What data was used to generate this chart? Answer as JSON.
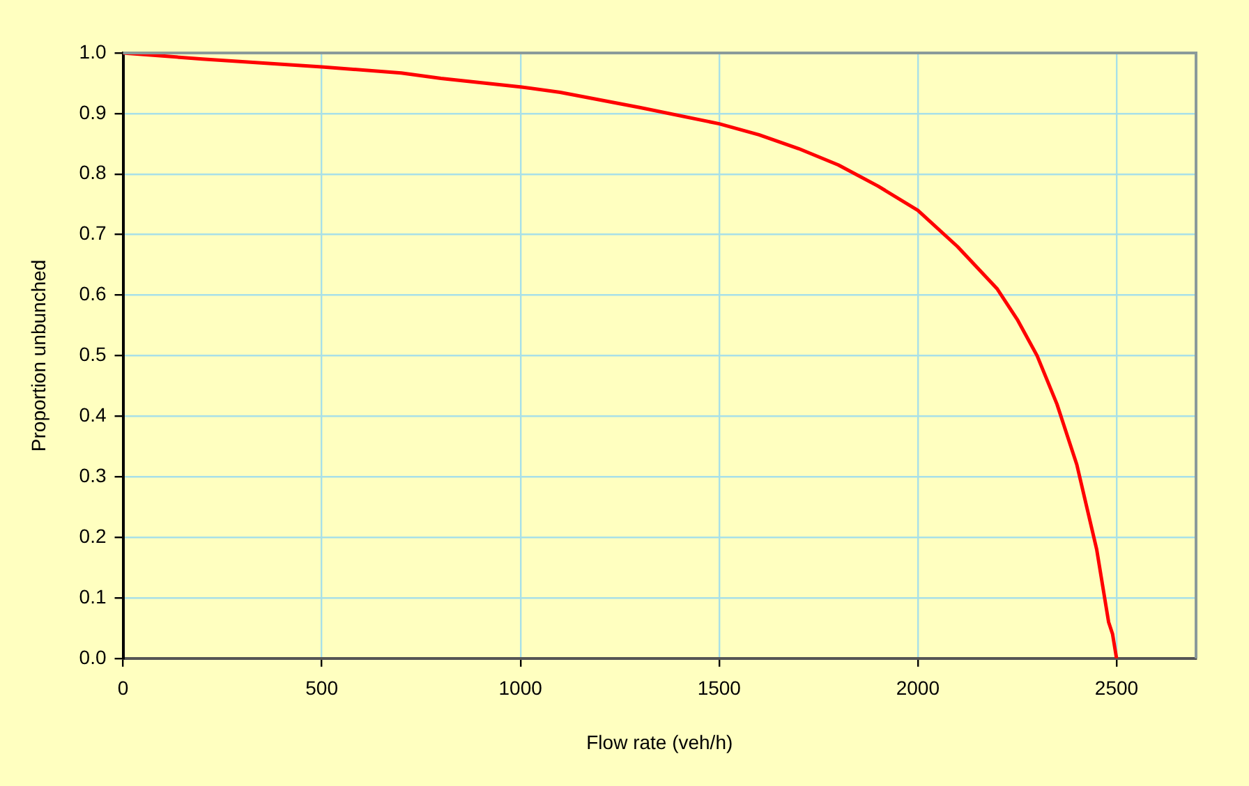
{
  "chart_data": {
    "type": "line",
    "xlabel": "Flow rate (veh/h)",
    "ylabel": "Proportion unbunched",
    "x": [
      0,
      200,
      500,
      700,
      800,
      1000,
      1100,
      1300,
      1500,
      1600,
      1700,
      1800,
      1900,
      2000,
      2100,
      2200,
      2250,
      2300,
      2350,
      2400,
      2450,
      2480,
      2490,
      2500
    ],
    "series": [
      {
        "color": "#ff0000",
        "values": [
          1.0,
          0.99,
          0.977,
          0.967,
          0.958,
          0.944,
          0.935,
          0.91,
          0.883,
          0.865,
          0.842,
          0.815,
          0.78,
          0.74,
          0.68,
          0.61,
          0.56,
          0.5,
          0.42,
          0.32,
          0.18,
          0.06,
          0.04,
          0.0
        ]
      }
    ],
    "xlim": [
      0,
      2700
    ],
    "xticks": [
      0,
      500,
      1000,
      1500,
      2000,
      2500
    ],
    "ylim": [
      0,
      1
    ],
    "yticks": [
      {
        "value": 0,
        "label": "0.0"
      },
      {
        "value": 0.1,
        "label": "0.1"
      },
      {
        "value": 0.2,
        "label": "0.2"
      },
      {
        "value": 0.3,
        "label": "0.3"
      },
      {
        "value": 0.4,
        "label": "0.4"
      },
      {
        "value": 0.5,
        "label": "0.5"
      },
      {
        "value": 0.6,
        "label": "0.6"
      },
      {
        "value": 0.7,
        "label": "0.7"
      },
      {
        "value": 0.8,
        "label": "0.8"
      },
      {
        "value": 0.9,
        "label": "0.9"
      },
      {
        "value": 1,
        "label": "1.0"
      }
    ],
    "grid": true,
    "legend": false,
    "marker": "none",
    "line_style": "solid"
  }
}
